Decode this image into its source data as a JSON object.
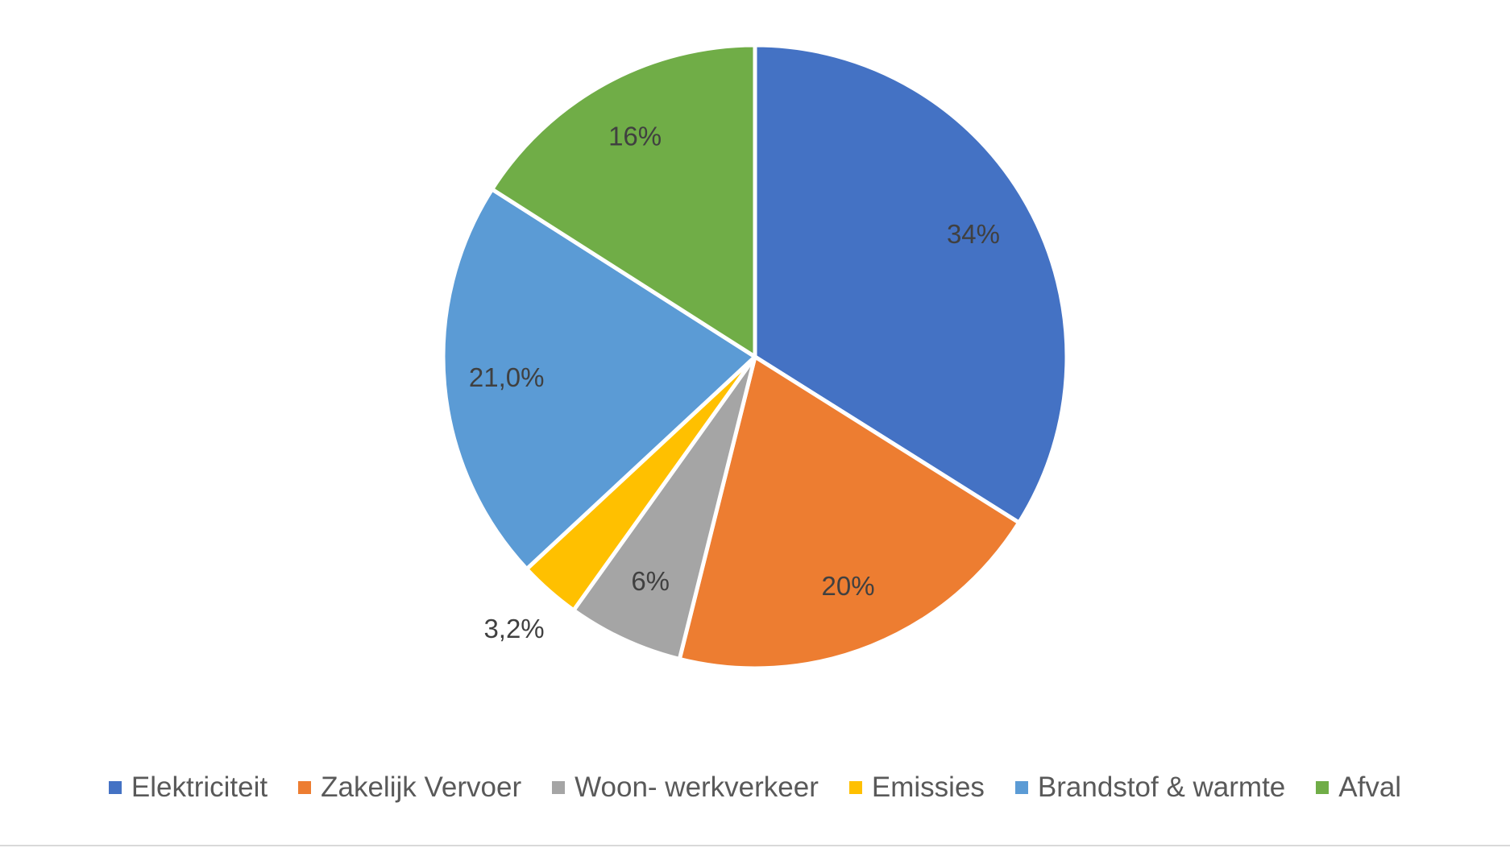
{
  "chart_data": {
    "type": "pie",
    "categories": [
      "Elektriciteit",
      "Zakelijk Vervoer",
      "Woon- werkverkeer",
      "Emissies",
      "Brandstof & warmte",
      "Afval"
    ],
    "values": [
      34,
      20,
      6,
      3.2,
      21.0,
      16
    ],
    "value_labels": [
      "34%",
      "20%",
      "6%",
      "3,2%",
      "21,0%",
      "16%"
    ],
    "colors": [
      "#4472c4",
      "#ed7d31",
      "#a5a5a5",
      "#ffc000",
      "#5b9bd5",
      "#70ad47"
    ]
  }
}
